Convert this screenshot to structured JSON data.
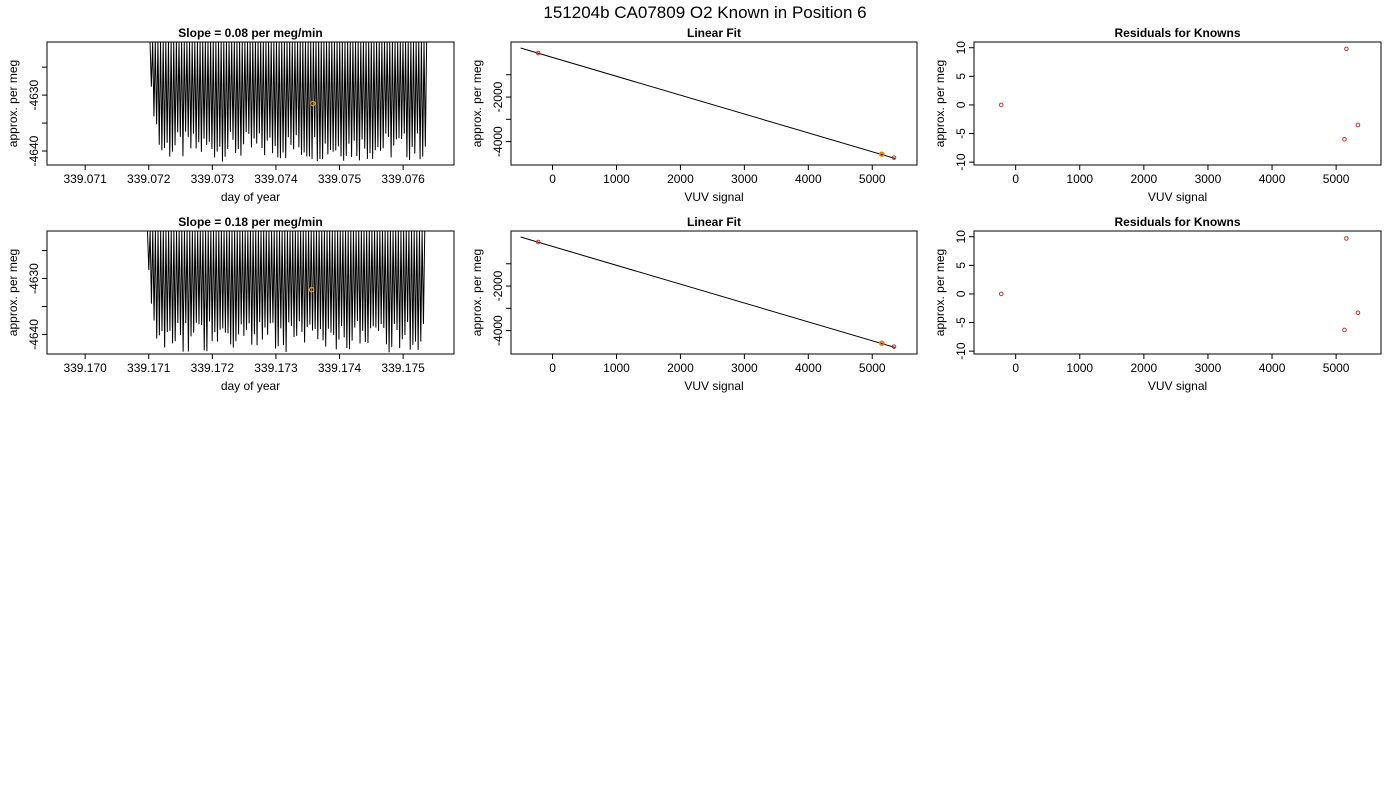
{
  "title": "151204b     CA07809   O2 Known in Position  6",
  "chart_data": [
    {
      "id": "timeseries-1",
      "type": "line",
      "title": "Slope =  0.08  per meg/min",
      "xlabel": "day of year",
      "ylabel": "approx. per meg",
      "xlim": [
        339.0704,
        339.0768
      ],
      "ylim": [
        -4642.5,
        -4620.5
      ],
      "xticks": [
        339.071,
        339.072,
        339.073,
        339.074,
        339.075,
        339.076
      ],
      "xtick_labels": [
        "339.071",
        "339.072",
        "339.073",
        "339.074",
        "339.075",
        "339.076"
      ],
      "yticks": [
        -4640,
        -4635,
        -4630,
        -4625
      ],
      "ytick_labels": [
        "-4640",
        "",
        "-4630",
        ""
      ],
      "series": [
        {
          "style": "oscillation",
          "x_start": 339.07202,
          "x_end": 339.07637,
          "cycles": 105,
          "y_high": -4620.5,
          "trough_min": -4641.9,
          "trough_max": -4636.5,
          "ramp_troughs": [
            -4628.5,
            -4633.8,
            -4635.2
          ],
          "color": "#000000"
        }
      ],
      "marker": {
        "x": 339.07458,
        "y": -4631.5,
        "color": "#e8a000"
      }
    },
    {
      "id": "linearfit-1",
      "type": "scatter",
      "title": "Linear Fit",
      "xlabel": "VUV signal",
      "ylabel": "approx. per meg",
      "xlim": [
        -650,
        5700
      ],
      "ylim": [
        -5050,
        470
      ],
      "xticks": [
        0,
        1000,
        2000,
        3000,
        4000,
        5000
      ],
      "xtick_labels": [
        "0",
        "1000",
        "2000",
        "3000",
        "4000",
        "5000"
      ],
      "yticks": [
        -4000,
        -3000,
        -2000,
        -1000
      ],
      "ytick_labels": [
        "-4000",
        "",
        "-2000",
        ""
      ],
      "fit_line": {
        "x": [
          -500,
          5360
        ],
        "y": [
          200,
          -4760
        ]
      },
      "points": [
        {
          "x": -225,
          "y": -25,
          "color": "#cc3333"
        },
        {
          "x": 5140,
          "y": -4560,
          "color": "#cc3333"
        },
        {
          "x": 5160,
          "y": -4575,
          "color": "#cc3333"
        },
        {
          "x": 5340,
          "y": -4720,
          "color": "#cc3333"
        }
      ],
      "marker": {
        "x": 5150,
        "y": -4568,
        "color": "#e8a000"
      }
    },
    {
      "id": "residuals-1",
      "type": "scatter",
      "title": "Residuals for Knowns",
      "xlabel": "VUV signal",
      "ylabel": "approx. per meg",
      "xlim": [
        -650,
        5700
      ],
      "ylim": [
        -10.5,
        11
      ],
      "xticks": [
        0,
        1000,
        2000,
        3000,
        4000,
        5000
      ],
      "xtick_labels": [
        "0",
        "1000",
        "2000",
        "3000",
        "4000",
        "5000"
      ],
      "yticks": [
        -10,
        -5,
        0,
        5,
        10
      ],
      "ytick_labels": [
        "-10",
        "-5",
        "0",
        "5",
        "10"
      ],
      "points": [
        {
          "x": -225,
          "y": 0,
          "color": "#cc3333"
        },
        {
          "x": 5130,
          "y": -6,
          "color": "#cc3333"
        },
        {
          "x": 5160,
          "y": 9.8,
          "color": "#cc3333"
        },
        {
          "x": 5340,
          "y": -3.5,
          "color": "#cc3333"
        }
      ]
    },
    {
      "id": "timeseries-2",
      "type": "line",
      "title": "Slope =  0.18  per meg/min",
      "xlabel": "day of year",
      "ylabel": "approx. per meg",
      "xlim": [
        339.1694,
        339.1758
      ],
      "ylim": [
        -4643.5,
        -4621.5
      ],
      "xticks": [
        339.17,
        339.171,
        339.172,
        339.173,
        339.174,
        339.175
      ],
      "xtick_labels": [
        "339.170",
        "339.171",
        "339.172",
        "339.173",
        "339.174",
        "339.175"
      ],
      "yticks": [
        -4640,
        -4635,
        -4630,
        -4625
      ],
      "ytick_labels": [
        "-4640",
        "",
        "-4630",
        ""
      ],
      "series": [
        {
          "style": "oscillation",
          "x_start": 339.17098,
          "x_end": 339.17534,
          "cycles": 105,
          "y_high": -4621.5,
          "trough_min": -4643.2,
          "trough_max": -4637.5,
          "ramp_troughs": [
            -4628.5,
            -4634.5,
            -4637.5
          ],
          "color": "#000000"
        }
      ],
      "marker": {
        "x": 339.17356,
        "y": -4632.0,
        "color": "#e8a000"
      }
    },
    {
      "id": "linearfit-2",
      "type": "scatter",
      "title": "Linear Fit",
      "xlabel": "VUV signal",
      "ylabel": "approx. per meg",
      "xlim": [
        -650,
        5700
      ],
      "ylim": [
        -5050,
        470
      ],
      "xticks": [
        0,
        1000,
        2000,
        3000,
        4000,
        5000
      ],
      "xtick_labels": [
        "0",
        "1000",
        "2000",
        "3000",
        "4000",
        "5000"
      ],
      "yticks": [
        -4000,
        -3000,
        -2000,
        -1000
      ],
      "ytick_labels": [
        "-4000",
        "",
        "-2000",
        ""
      ],
      "fit_line": {
        "x": [
          -500,
          5360
        ],
        "y": [
          200,
          -4760
        ]
      },
      "points": [
        {
          "x": -225,
          "y": -25,
          "color": "#cc3333"
        },
        {
          "x": 5140,
          "y": -4560,
          "color": "#cc3333"
        },
        {
          "x": 5160,
          "y": -4575,
          "color": "#cc3333"
        },
        {
          "x": 5340,
          "y": -4720,
          "color": "#cc3333"
        }
      ],
      "marker": {
        "x": 5150,
        "y": -4568,
        "color": "#e8a000"
      }
    },
    {
      "id": "residuals-2",
      "type": "scatter",
      "title": "Residuals for Knowns",
      "xlabel": "VUV signal",
      "ylabel": "approx. per meg",
      "xlim": [
        -650,
        5700
      ],
      "ylim": [
        -10.5,
        11
      ],
      "xticks": [
        0,
        1000,
        2000,
        3000,
        4000,
        5000
      ],
      "xtick_labels": [
        "0",
        "1000",
        "2000",
        "3000",
        "4000",
        "5000"
      ],
      "yticks": [
        -10,
        -5,
        0,
        5,
        10
      ],
      "ytick_labels": [
        "-10",
        "-5",
        "0",
        "5",
        "10"
      ],
      "points": [
        {
          "x": -225,
          "y": 0,
          "color": "#cc3333"
        },
        {
          "x": 5130,
          "y": -6.3,
          "color": "#cc3333"
        },
        {
          "x": 5160,
          "y": 9.7,
          "color": "#cc3333"
        },
        {
          "x": 5340,
          "y": -3.3,
          "color": "#cc3333"
        }
      ]
    }
  ]
}
